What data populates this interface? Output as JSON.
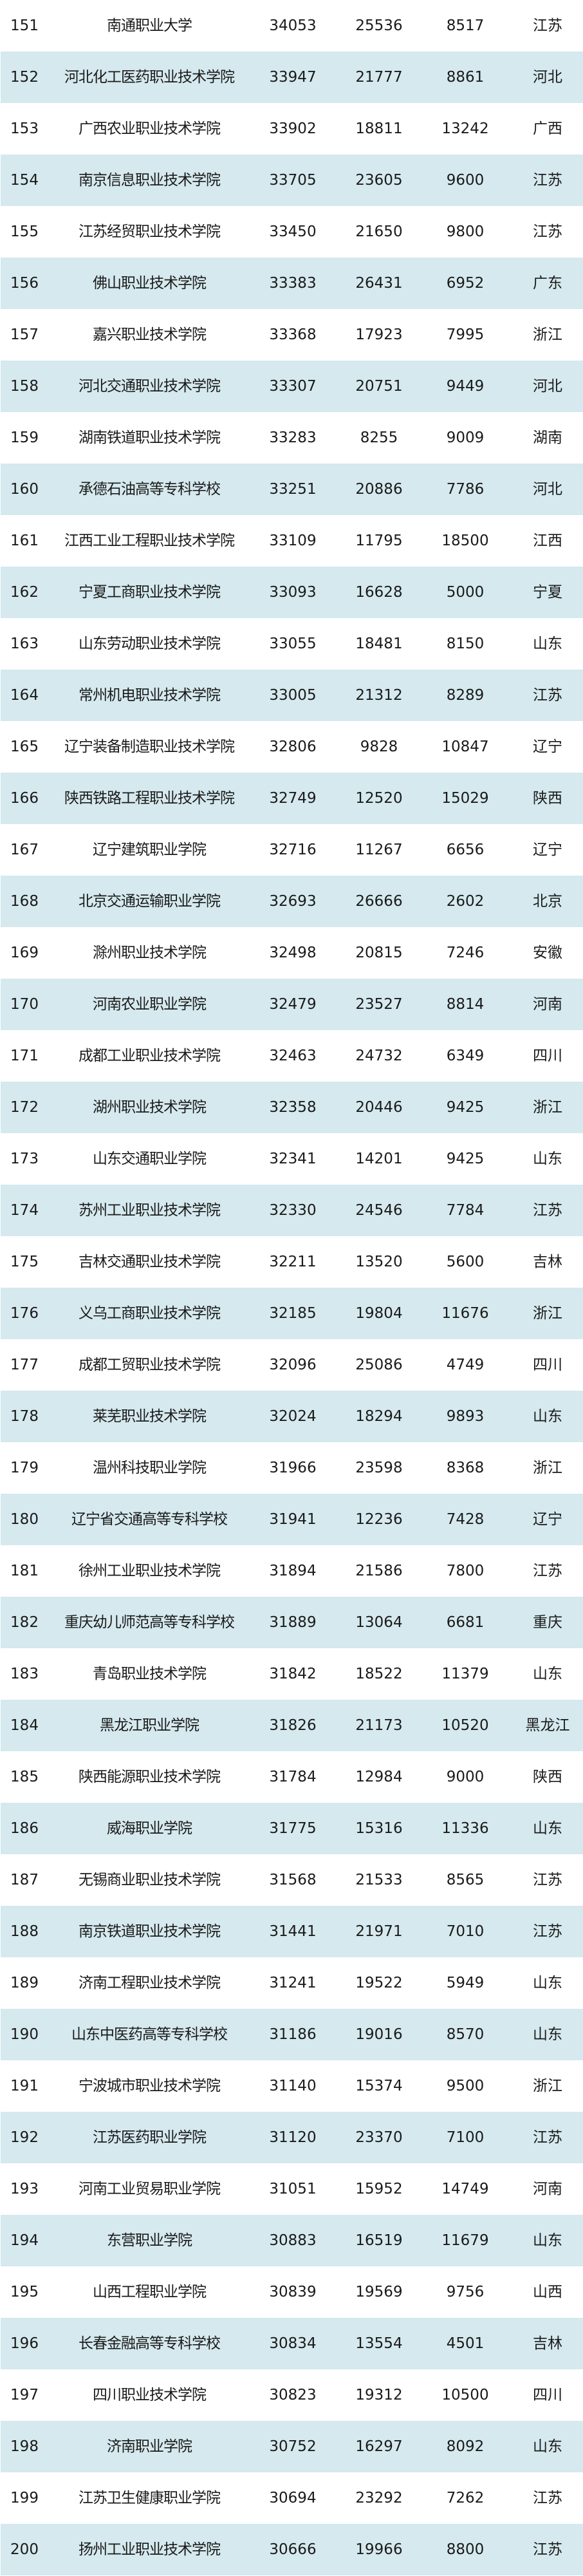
{
  "colors": {
    "row_alt_bg": "#d5e9ee",
    "row_bg": "#ffffff"
  },
  "rows": [
    {
      "rank": "151",
      "name": "南通职业大学",
      "v1": "34053",
      "v2": "25536",
      "v3": "8517",
      "province": "江苏"
    },
    {
      "rank": "152",
      "name": "河北化工医药职业技术学院",
      "v1": "33947",
      "v2": "21777",
      "v3": "8861",
      "province": "河北"
    },
    {
      "rank": "153",
      "name": "广西农业职业技术学院",
      "v1": "33902",
      "v2": "18811",
      "v3": "13242",
      "province": "广西"
    },
    {
      "rank": "154",
      "name": "南京信息职业技术学院",
      "v1": "33705",
      "v2": "23605",
      "v3": "9600",
      "province": "江苏"
    },
    {
      "rank": "155",
      "name": "江苏经贸职业技术学院",
      "v1": "33450",
      "v2": "21650",
      "v3": "9800",
      "province": "江苏"
    },
    {
      "rank": "156",
      "name": "佛山职业技术学院",
      "v1": "33383",
      "v2": "26431",
      "v3": "6952",
      "province": "广东"
    },
    {
      "rank": "157",
      "name": "嘉兴职业技术学院",
      "v1": "33368",
      "v2": "17923",
      "v3": "7995",
      "province": "浙江"
    },
    {
      "rank": "158",
      "name": "河北交通职业技术学院",
      "v1": "33307",
      "v2": "20751",
      "v3": "9449",
      "province": "河北"
    },
    {
      "rank": "159",
      "name": "湖南铁道职业技术学院",
      "v1": "33283",
      "v2": "8255",
      "v3": "9009",
      "province": "湖南"
    },
    {
      "rank": "160",
      "name": "承德石油高等专科学校",
      "v1": "33251",
      "v2": "20886",
      "v3": "7786",
      "province": "河北"
    },
    {
      "rank": "161",
      "name": "江西工业工程职业技术学院",
      "v1": "33109",
      "v2": "11795",
      "v3": "18500",
      "province": "江西"
    },
    {
      "rank": "162",
      "name": "宁夏工商职业技术学院",
      "v1": "33093",
      "v2": "16628",
      "v3": "5000",
      "province": "宁夏"
    },
    {
      "rank": "163",
      "name": "山东劳动职业技术学院",
      "v1": "33055",
      "v2": "18481",
      "v3": "8150",
      "province": "山东"
    },
    {
      "rank": "164",
      "name": "常州机电职业技术学院",
      "v1": "33005",
      "v2": "21312",
      "v3": "8289",
      "province": "江苏"
    },
    {
      "rank": "165",
      "name": "辽宁装备制造职业技术学院",
      "v1": "32806",
      "v2": "9828",
      "v3": "10847",
      "province": "辽宁"
    },
    {
      "rank": "166",
      "name": "陕西铁路工程职业技术学院",
      "v1": "32749",
      "v2": "12520",
      "v3": "15029",
      "province": "陕西"
    },
    {
      "rank": "167",
      "name": "辽宁建筑职业学院",
      "v1": "32716",
      "v2": "11267",
      "v3": "6656",
      "province": "辽宁"
    },
    {
      "rank": "168",
      "name": "北京交通运输职业学院",
      "v1": "32693",
      "v2": "26666",
      "v3": "2602",
      "province": "北京"
    },
    {
      "rank": "169",
      "name": "滁州职业技术学院",
      "v1": "32498",
      "v2": "20815",
      "v3": "7246",
      "province": "安徽"
    },
    {
      "rank": "170",
      "name": "河南农业职业学院",
      "v1": "32479",
      "v2": "23527",
      "v3": "8814",
      "province": "河南"
    },
    {
      "rank": "171",
      "name": "成都工业职业技术学院",
      "v1": "32463",
      "v2": "24732",
      "v3": "6349",
      "province": "四川"
    },
    {
      "rank": "172",
      "name": "湖州职业技术学院",
      "v1": "32358",
      "v2": "20446",
      "v3": "9425",
      "province": "浙江"
    },
    {
      "rank": "173",
      "name": "山东交通职业学院",
      "v1": "32341",
      "v2": "14201",
      "v3": "9425",
      "province": "山东"
    },
    {
      "rank": "174",
      "name": "苏州工业职业技术学院",
      "v1": "32330",
      "v2": "24546",
      "v3": "7784",
      "province": "江苏"
    },
    {
      "rank": "175",
      "name": "吉林交通职业技术学院",
      "v1": "32211",
      "v2": "13520",
      "v3": "5600",
      "province": "吉林"
    },
    {
      "rank": "176",
      "name": "义乌工商职业技术学院",
      "v1": "32185",
      "v2": "19804",
      "v3": "11676",
      "province": "浙江"
    },
    {
      "rank": "177",
      "name": "成都工贸职业技术学院",
      "v1": "32096",
      "v2": "25086",
      "v3": "4749",
      "province": "四川"
    },
    {
      "rank": "178",
      "name": "莱芜职业技术学院",
      "v1": "32024",
      "v2": "18294",
      "v3": "9893",
      "province": "山东"
    },
    {
      "rank": "179",
      "name": "温州科技职业学院",
      "v1": "31966",
      "v2": "23598",
      "v3": "8368",
      "province": "浙江"
    },
    {
      "rank": "180",
      "name": "辽宁省交通高等专科学校",
      "v1": "31941",
      "v2": "12236",
      "v3": "7428",
      "province": "辽宁"
    },
    {
      "rank": "181",
      "name": "徐州工业职业技术学院",
      "v1": "31894",
      "v2": "21586",
      "v3": "7800",
      "province": "江苏"
    },
    {
      "rank": "182",
      "name": "重庆幼儿师范高等专科学校",
      "v1": "31889",
      "v2": "13064",
      "v3": "6681",
      "province": "重庆"
    },
    {
      "rank": "183",
      "name": "青岛职业技术学院",
      "v1": "31842",
      "v2": "18522",
      "v3": "11379",
      "province": "山东"
    },
    {
      "rank": "184",
      "name": "黑龙江职业学院",
      "v1": "31826",
      "v2": "21173",
      "v3": "10520",
      "province": "黑龙江"
    },
    {
      "rank": "185",
      "name": "陕西能源职业技术学院",
      "v1": "31784",
      "v2": "12984",
      "v3": "9000",
      "province": "陕西"
    },
    {
      "rank": "186",
      "name": "威海职业学院",
      "v1": "31775",
      "v2": "15316",
      "v3": "11336",
      "province": "山东"
    },
    {
      "rank": "187",
      "name": "无锡商业职业技术学院",
      "v1": "31568",
      "v2": "21533",
      "v3": "8565",
      "province": "江苏"
    },
    {
      "rank": "188",
      "name": "南京铁道职业技术学院",
      "v1": "31441",
      "v2": "21971",
      "v3": "7010",
      "province": "江苏"
    },
    {
      "rank": "189",
      "name": "济南工程职业技术学院",
      "v1": "31241",
      "v2": "19522",
      "v3": "5949",
      "province": "山东"
    },
    {
      "rank": "190",
      "name": "山东中医药高等专科学校",
      "v1": "31186",
      "v2": "19016",
      "v3": "8570",
      "province": "山东"
    },
    {
      "rank": "191",
      "name": "宁波城市职业技术学院",
      "v1": "31140",
      "v2": "15374",
      "v3": "9500",
      "province": "浙江"
    },
    {
      "rank": "192",
      "name": "江苏医药职业学院",
      "v1": "31120",
      "v2": "23370",
      "v3": "7100",
      "province": "江苏"
    },
    {
      "rank": "193",
      "name": "河南工业贸易职业学院",
      "v1": "31051",
      "v2": "15952",
      "v3": "14749",
      "province": "河南"
    },
    {
      "rank": "194",
      "name": "东营职业学院",
      "v1": "30883",
      "v2": "16519",
      "v3": "11679",
      "province": "山东"
    },
    {
      "rank": "195",
      "name": "山西工程职业学院",
      "v1": "30839",
      "v2": "19569",
      "v3": "9756",
      "province": "山西"
    },
    {
      "rank": "196",
      "name": "长春金融高等专科学校",
      "v1": "30834",
      "v2": "13554",
      "v3": "4501",
      "province": "吉林"
    },
    {
      "rank": "197",
      "name": "四川职业技术学院",
      "v1": "30823",
      "v2": "19312",
      "v3": "10500",
      "province": "四川"
    },
    {
      "rank": "198",
      "name": "济南职业学院",
      "v1": "30752",
      "v2": "16297",
      "v3": "8092",
      "province": "山东"
    },
    {
      "rank": "199",
      "name": "江苏卫生健康职业学院",
      "v1": "30694",
      "v2": "23292",
      "v3": "7262",
      "province": "江苏"
    },
    {
      "rank": "200",
      "name": "扬州工业职业技术学院",
      "v1": "30666",
      "v2": "19966",
      "v3": "8800",
      "province": "江苏"
    }
  ]
}
